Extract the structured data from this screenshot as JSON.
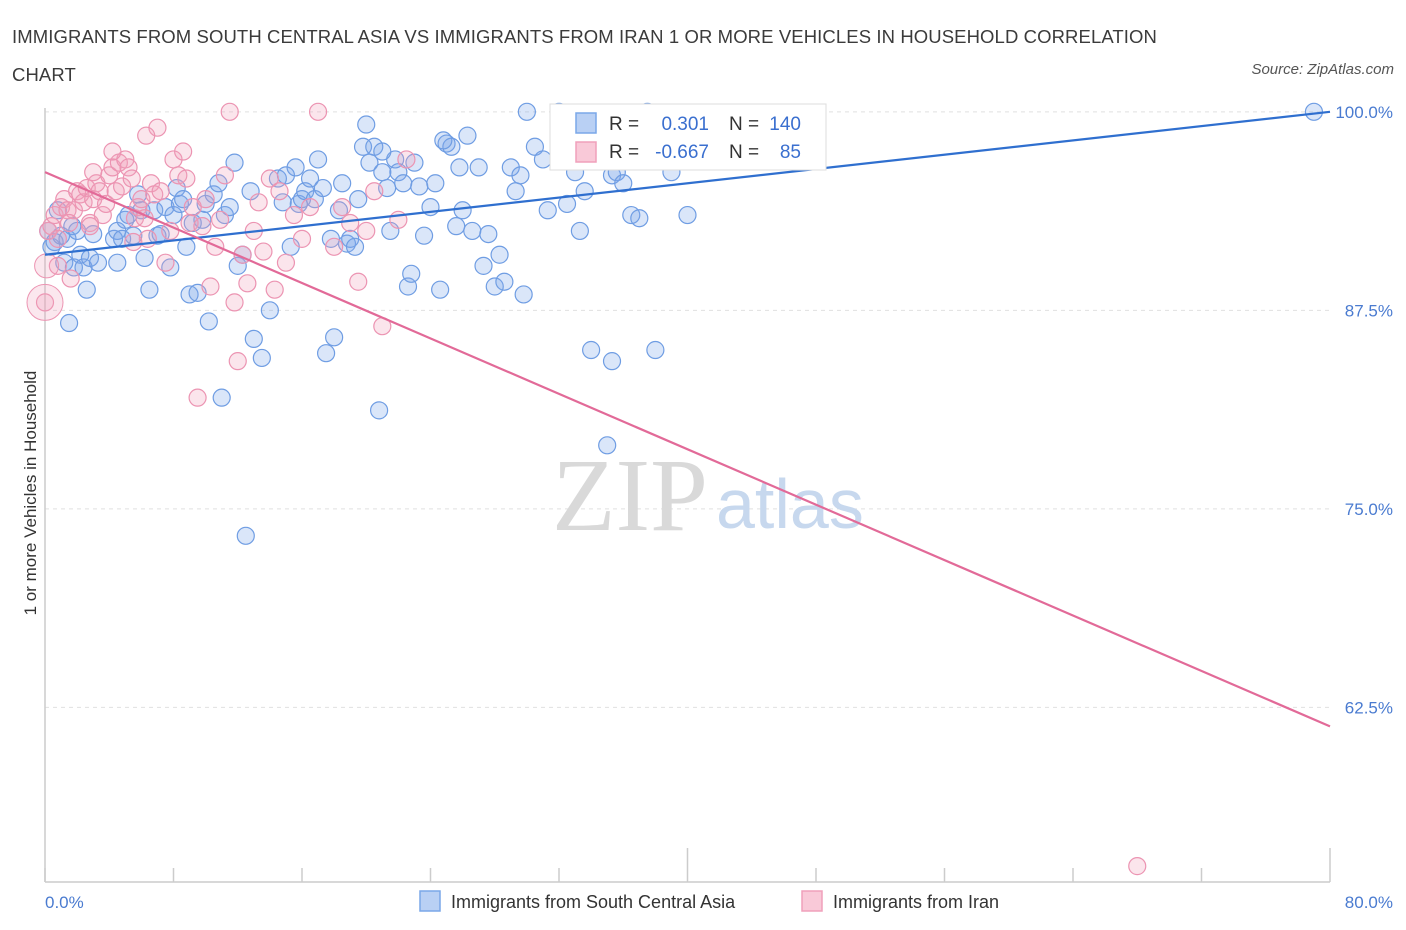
{
  "header": {
    "title": "IMMIGRANTS FROM SOUTH CENTRAL ASIA VS IMMIGRANTS FROM IRAN 1 OR MORE VEHICLES IN HOUSEHOLD CORRELATION CHART",
    "source": "Source: ZipAtlas.com"
  },
  "watermark": {
    "zip": "ZIP",
    "atlas": "atlas"
  },
  "legend": {
    "r_label": "R =",
    "n_label": "N =",
    "rows": [
      {
        "r": "0.301",
        "n": "140"
      },
      {
        "r": "-0.667",
        "n": "85"
      }
    ]
  },
  "colors": {
    "blue": "#7aa7e8",
    "blue_line": "#2f6fcf",
    "pink": "#f0a0bb",
    "pink_line": "#e26a98",
    "tick_text": "#4a7bd0",
    "grid": "#dddddd"
  },
  "chart_data": {
    "type": "scatter",
    "xlabel": "",
    "ylabel": "1 or more Vehicles in Household",
    "xlim": [
      0,
      80
    ],
    "ylim": [
      51.5,
      101.5
    ],
    "x_tick_labels": [
      {
        "value": 0,
        "label": "0.0%"
      },
      {
        "value": 80,
        "label": "80.0%"
      }
    ],
    "y_tick_labels": [
      {
        "value": 100,
        "label": "100.0%"
      },
      {
        "value": 87.5,
        "label": "87.5%"
      },
      {
        "value": 75,
        "label": "75.0%"
      },
      {
        "value": 62.5,
        "label": "62.5%"
      }
    ],
    "grid": true,
    "legend_position": "top-center",
    "series": [
      {
        "name": "Immigrants from South Central Asia",
        "color": "#7aa7e8",
        "r": 0.301,
        "n": 140,
        "trend": [
          [
            0,
            91.0
          ],
          [
            80,
            100.0
          ]
        ],
        "points": [
          [
            0.2,
            92.5
          ],
          [
            0.4,
            91.5
          ],
          [
            0.6,
            91.8
          ],
          [
            0.8,
            93.8
          ],
          [
            1.0,
            92.2
          ],
          [
            1.2,
            90.5
          ],
          [
            1.4,
            92.0
          ],
          [
            1.5,
            86.7
          ],
          [
            1.7,
            92.8
          ],
          [
            1.8,
            90.2
          ],
          [
            2.0,
            92.5
          ],
          [
            2.2,
            91.0
          ],
          [
            2.4,
            90.2
          ],
          [
            2.6,
            88.8
          ],
          [
            2.8,
            90.8
          ],
          [
            3.0,
            92.3
          ],
          [
            3.3,
            90.5
          ],
          [
            4.3,
            92.0
          ],
          [
            4.5,
            92.5
          ],
          [
            4.8,
            92.0
          ],
          [
            4.5,
            90.5
          ],
          [
            5.0,
            93.2
          ],
          [
            5.2,
            93.5
          ],
          [
            5.5,
            92.2
          ],
          [
            5.8,
            94.8
          ],
          [
            6.0,
            93.8
          ],
          [
            6.2,
            90.8
          ],
          [
            6.5,
            88.8
          ],
          [
            6.8,
            93.8
          ],
          [
            7.0,
            92.2
          ],
          [
            7.2,
            92.3
          ],
          [
            7.5,
            94.0
          ],
          [
            7.8,
            90.2
          ],
          [
            8.0,
            93.5
          ],
          [
            8.2,
            95.2
          ],
          [
            8.4,
            94.2
          ],
          [
            8.6,
            94.5
          ],
          [
            8.8,
            91.5
          ],
          [
            9.0,
            88.5
          ],
          [
            9.2,
            93.0
          ],
          [
            9.5,
            88.6
          ],
          [
            9.8,
            93.2
          ],
          [
            10.0,
            94.2
          ],
          [
            10.2,
            86.8
          ],
          [
            10.5,
            94.8
          ],
          [
            10.8,
            95.5
          ],
          [
            11.0,
            82.0
          ],
          [
            11.2,
            93.5
          ],
          [
            11.5,
            94.0
          ],
          [
            11.8,
            96.8
          ],
          [
            12.0,
            90.3
          ],
          [
            12.3,
            91.0
          ],
          [
            12.5,
            73.3
          ],
          [
            12.8,
            95.0
          ],
          [
            13.0,
            85.7
          ],
          [
            13.5,
            84.5
          ],
          [
            14.0,
            87.5
          ],
          [
            14.5,
            95.8
          ],
          [
            14.8,
            94.3
          ],
          [
            15.0,
            96.0
          ],
          [
            15.3,
            91.5
          ],
          [
            15.6,
            96.5
          ],
          [
            15.8,
            94.2
          ],
          [
            16.0,
            94.5
          ],
          [
            16.2,
            95.0
          ],
          [
            16.5,
            95.8
          ],
          [
            16.8,
            94.5
          ],
          [
            17.0,
            97.0
          ],
          [
            17.3,
            95.2
          ],
          [
            17.5,
            84.8
          ],
          [
            17.8,
            92.0
          ],
          [
            18.0,
            85.8
          ],
          [
            18.3,
            93.8
          ],
          [
            18.5,
            95.5
          ],
          [
            18.8,
            91.7
          ],
          [
            19.0,
            92.0
          ],
          [
            19.3,
            91.5
          ],
          [
            19.5,
            94.5
          ],
          [
            19.8,
            97.8
          ],
          [
            20.0,
            99.2
          ],
          [
            20.2,
            96.8
          ],
          [
            20.5,
            97.8
          ],
          [
            20.8,
            81.2
          ],
          [
            21.0,
            96.2
          ],
          [
            21.3,
            95.2
          ],
          [
            21.5,
            92.5
          ],
          [
            21.8,
            97.0
          ],
          [
            22.0,
            96.2
          ],
          [
            22.3,
            95.5
          ],
          [
            22.6,
            89.0
          ],
          [
            22.8,
            89.8
          ],
          [
            23.0,
            96.8
          ],
          [
            23.3,
            95.3
          ],
          [
            23.6,
            92.2
          ],
          [
            24.0,
            94.0
          ],
          [
            24.3,
            95.5
          ],
          [
            24.6,
            88.8
          ],
          [
            25.0,
            98.0
          ],
          [
            25.3,
            97.8
          ],
          [
            25.6,
            92.8
          ],
          [
            25.8,
            96.5
          ],
          [
            26.0,
            93.8
          ],
          [
            26.3,
            98.5
          ],
          [
            26.6,
            92.5
          ],
          [
            27.0,
            96.5
          ],
          [
            27.3,
            90.3
          ],
          [
            27.6,
            92.3
          ],
          [
            28.0,
            89.0
          ],
          [
            28.3,
            91.0
          ],
          [
            28.6,
            89.3
          ],
          [
            29.0,
            96.5
          ],
          [
            29.3,
            95.0
          ],
          [
            29.6,
            96.0
          ],
          [
            30.0,
            100.0
          ],
          [
            30.5,
            97.8
          ],
          [
            31.0,
            97.0
          ],
          [
            31.3,
            93.8
          ],
          [
            32.0,
            100.0
          ],
          [
            32.5,
            94.2
          ],
          [
            33.0,
            96.2
          ],
          [
            33.3,
            92.5
          ],
          [
            33.6,
            95.0
          ],
          [
            34.0,
            85.0
          ],
          [
            34.5,
            97.5
          ],
          [
            35.0,
            79.0
          ],
          [
            35.3,
            96.0
          ],
          [
            35.6,
            96.2
          ],
          [
            36.0,
            95.5
          ],
          [
            36.5,
            93.5
          ],
          [
            37.0,
            93.3
          ],
          [
            37.5,
            100.0
          ],
          [
            38.0,
            85.0
          ],
          [
            39.0,
            96.2
          ],
          [
            40.0,
            93.5
          ],
          [
            79.0,
            100.0
          ],
          [
            35.3,
            84.3
          ],
          [
            33.0,
            98.5
          ],
          [
            21.0,
            97.5
          ],
          [
            29.8,
            88.5
          ],
          [
            24.8,
            98.2
          ]
        ]
      },
      {
        "name": "Immigrants from Iran",
        "color": "#f0a0bb",
        "r": -0.667,
        "n": 85,
        "trend": [
          [
            0,
            96.2
          ],
          [
            80,
            61.3
          ]
        ],
        "points": [
          [
            0.0,
            88.0
          ],
          [
            0.2,
            92.5
          ],
          [
            0.4,
            92.8
          ],
          [
            0.6,
            93.5
          ],
          [
            0.8,
            92.0
          ],
          [
            1.0,
            94.0
          ],
          [
            1.2,
            94.5
          ],
          [
            1.4,
            93.8
          ],
          [
            1.6,
            89.5
          ],
          [
            1.8,
            93.8
          ],
          [
            2.0,
            95.0
          ],
          [
            2.2,
            94.8
          ],
          [
            2.4,
            94.3
          ],
          [
            2.6,
            95.2
          ],
          [
            2.8,
            93.0
          ],
          [
            3.0,
            94.5
          ],
          [
            3.2,
            95.5
          ],
          [
            3.4,
            95.0
          ],
          [
            3.6,
            93.5
          ],
          [
            3.8,
            94.2
          ],
          [
            4.0,
            96.0
          ],
          [
            4.2,
            96.5
          ],
          [
            4.4,
            95.0
          ],
          [
            4.6,
            96.8
          ],
          [
            4.8,
            95.3
          ],
          [
            5.0,
            97.0
          ],
          [
            5.2,
            96.5
          ],
          [
            5.4,
            95.8
          ],
          [
            5.6,
            93.3
          ],
          [
            5.8,
            94.0
          ],
          [
            6.0,
            94.5
          ],
          [
            6.2,
            93.3
          ],
          [
            6.4,
            92.0
          ],
          [
            6.6,
            95.5
          ],
          [
            6.8,
            94.8
          ],
          [
            7.0,
            99.0
          ],
          [
            7.2,
            95.0
          ],
          [
            7.5,
            90.5
          ],
          [
            7.8,
            92.5
          ],
          [
            8.0,
            97.0
          ],
          [
            8.3,
            96.0
          ],
          [
            8.6,
            97.5
          ],
          [
            8.8,
            95.8
          ],
          [
            9.0,
            93.0
          ],
          [
            9.2,
            94.0
          ],
          [
            9.5,
            82.0
          ],
          [
            9.8,
            92.8
          ],
          [
            10.0,
            94.5
          ],
          [
            10.3,
            89.0
          ],
          [
            10.6,
            91.5
          ],
          [
            10.9,
            93.2
          ],
          [
            11.2,
            96.0
          ],
          [
            11.5,
            100.0
          ],
          [
            11.8,
            88.0
          ],
          [
            12.0,
            84.3
          ],
          [
            12.3,
            91.0
          ],
          [
            12.6,
            89.2
          ],
          [
            13.0,
            92.5
          ],
          [
            13.3,
            94.3
          ],
          [
            13.6,
            91.2
          ],
          [
            14.0,
            95.8
          ],
          [
            14.3,
            88.8
          ],
          [
            14.6,
            95.0
          ],
          [
            15.0,
            90.5
          ],
          [
            15.5,
            93.5
          ],
          [
            16.0,
            92.0
          ],
          [
            16.5,
            94.0
          ],
          [
            17.0,
            100.0
          ],
          [
            18.0,
            91.5
          ],
          [
            18.5,
            94.0
          ],
          [
            19.0,
            93.0
          ],
          [
            19.5,
            89.3
          ],
          [
            20.0,
            92.5
          ],
          [
            20.5,
            95.0
          ],
          [
            21.0,
            86.5
          ],
          [
            22.0,
            93.2
          ],
          [
            22.5,
            97.0
          ],
          [
            6.3,
            98.5
          ],
          [
            4.2,
            97.5
          ],
          [
            3.0,
            96.2
          ],
          [
            1.5,
            93.0
          ],
          [
            2.8,
            92.8
          ],
          [
            0.8,
            90.3
          ],
          [
            5.5,
            91.8
          ],
          [
            68.0,
            52.5
          ]
        ]
      }
    ]
  },
  "bottom_legend": {
    "items": [
      {
        "label": "Immigrants from South Central Asia"
      },
      {
        "label": "Immigrants from Iran"
      }
    ]
  }
}
